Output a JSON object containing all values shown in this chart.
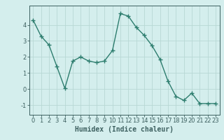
{
  "x": [
    0,
    1,
    2,
    3,
    4,
    5,
    6,
    7,
    8,
    9,
    10,
    11,
    12,
    13,
    14,
    15,
    16,
    17,
    18,
    19,
    20,
    21,
    22,
    23
  ],
  "y": [
    4.3,
    3.3,
    2.75,
    1.4,
    0.05,
    1.75,
    2.0,
    1.75,
    1.65,
    1.75,
    2.4,
    4.7,
    4.55,
    3.85,
    3.35,
    2.7,
    1.85,
    0.5,
    -0.45,
    -0.7,
    -0.25,
    -0.9,
    -0.9,
    -0.9
  ],
  "line_color": "#2d7d6e",
  "marker": "+",
  "markersize": 4,
  "linewidth": 1.0,
  "bg_color": "#d4eeed",
  "grid_color": "#b8d8d4",
  "xlabel": "Humidex (Indice chaleur)",
  "xlabel_fontsize": 7,
  "tick_fontsize": 6,
  "ylim": [
    -1.6,
    5.2
  ],
  "xlim": [
    -0.5,
    23.5
  ],
  "yticks": [
    -1,
    0,
    1,
    2,
    3,
    4
  ],
  "xticks": [
    0,
    1,
    2,
    3,
    4,
    5,
    6,
    7,
    8,
    9,
    10,
    11,
    12,
    13,
    14,
    15,
    16,
    17,
    18,
    19,
    20,
    21,
    22,
    23
  ],
  "spine_color": "#3d6060",
  "tick_color": "#3d6060"
}
